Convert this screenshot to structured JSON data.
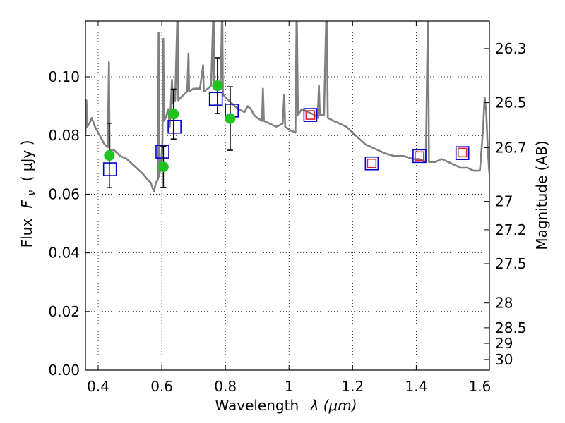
{
  "chart_data": {
    "type": "scatter",
    "xlabel_text": "Wavelength",
    "xlabel_math": "λ (μm)",
    "ylabel_text": "Flux",
    "ylabel_math": "F",
    "ylabel_sub": "ν",
    "ylabel_unit": "( μJy )",
    "y2label": "Magnitude (AB)",
    "xlim": [
      0.36,
      1.63
    ],
    "ylim": [
      0.0,
      0.119
    ],
    "xticks": [
      0.4,
      0.6,
      0.8,
      1.0,
      1.2,
      1.4,
      1.6
    ],
    "xtick_labels": [
      "0.4",
      "0.6",
      "0.8",
      "1",
      "1.2",
      "1.4",
      "1.6"
    ],
    "yticks": [
      0.0,
      0.02,
      0.04,
      0.06,
      0.08,
      0.1
    ],
    "ytick_labels": [
      "0.00",
      "0.02",
      "0.04",
      "0.06",
      "0.08",
      "0.10"
    ],
    "mag_ticks": [
      26.3,
      26.5,
      26.7,
      27,
      27.2,
      27.5,
      28,
      28.5,
      29,
      30
    ],
    "mag_tick_labels": [
      "26.3",
      "26.5",
      "26.7",
      "27",
      "27.2",
      "27.5",
      "28",
      "28.5",
      "29",
      "30"
    ],
    "grid": true,
    "colors": {
      "template": "#808080",
      "observed": "#1fc41f",
      "model_box": "#0000cc",
      "ir_box": "#e0202a",
      "errorbar": "#000000"
    },
    "template_spectrum": [
      [
        0.36,
        0.08
      ],
      [
        0.363,
        0.092
      ],
      [
        0.366,
        0.083
      ],
      [
        0.372,
        0.084
      ],
      [
        0.38,
        0.086
      ],
      [
        0.39,
        0.083
      ],
      [
        0.4,
        0.081
      ],
      [
        0.41,
        0.079
      ],
      [
        0.42,
        0.077
      ],
      [
        0.43,
        0.076
      ],
      [
        0.434,
        0.105
      ],
      [
        0.436,
        0.075
      ],
      [
        0.45,
        0.075
      ],
      [
        0.47,
        0.073
      ],
      [
        0.49,
        0.072
      ],
      [
        0.5,
        0.071
      ],
      [
        0.52,
        0.069
      ],
      [
        0.54,
        0.067
      ],
      [
        0.555,
        0.065
      ],
      [
        0.565,
        0.064
      ],
      [
        0.575,
        0.061
      ],
      [
        0.582,
        0.064
      ],
      [
        0.588,
        0.065
      ],
      [
        0.59,
        0.115
      ],
      [
        0.592,
        0.066
      ],
      [
        0.598,
        0.071
      ],
      [
        0.602,
        0.078
      ],
      [
        0.605,
        0.113
      ],
      [
        0.607,
        0.085
      ],
      [
        0.612,
        0.086
      ],
      [
        0.62,
        0.089
      ],
      [
        0.625,
        0.083
      ],
      [
        0.632,
        0.099
      ],
      [
        0.635,
        0.091
      ],
      [
        0.642,
        0.092
      ],
      [
        0.65,
        0.125
      ],
      [
        0.652,
        0.092
      ],
      [
        0.66,
        0.093
      ],
      [
        0.67,
        0.094
      ],
      [
        0.68,
        0.095
      ],
      [
        0.684,
        0.108
      ],
      [
        0.686,
        0.095
      ],
      [
        0.7,
        0.096
      ],
      [
        0.72,
        0.096
      ],
      [
        0.73,
        0.104
      ],
      [
        0.732,
        0.095
      ],
      [
        0.745,
        0.096
      ],
      [
        0.755,
        0.097
      ],
      [
        0.763,
        0.125
      ],
      [
        0.765,
        0.097
      ],
      [
        0.775,
        0.098
      ],
      [
        0.785,
        0.097
      ],
      [
        0.79,
        0.125
      ],
      [
        0.792,
        0.094
      ],
      [
        0.8,
        0.093
      ],
      [
        0.81,
        0.092
      ],
      [
        0.82,
        0.091
      ],
      [
        0.84,
        0.089
      ],
      [
        0.86,
        0.088
      ],
      [
        0.87,
        0.09
      ],
      [
        0.88,
        0.089
      ],
      [
        0.89,
        0.087
      ],
      [
        0.9,
        0.086
      ],
      [
        0.915,
        0.085
      ],
      [
        0.918,
        0.096
      ],
      [
        0.921,
        0.085
      ],
      [
        0.94,
        0.084
      ],
      [
        0.96,
        0.083
      ],
      [
        0.98,
        0.084
      ],
      [
        0.985,
        0.094
      ],
      [
        0.988,
        0.083
      ],
      [
        1.0,
        0.082
      ],
      [
        1.02,
        0.081
      ],
      [
        1.024,
        0.125
      ],
      [
        1.028,
        0.087
      ],
      [
        1.04,
        0.089
      ],
      [
        1.06,
        0.088
      ],
      [
        1.08,
        0.087
      ],
      [
        1.09,
        0.086
      ],
      [
        1.094,
        0.097
      ],
      [
        1.097,
        0.087
      ],
      [
        1.11,
        0.087
      ],
      [
        1.118,
        0.125
      ],
      [
        1.122,
        0.086
      ],
      [
        1.14,
        0.085
      ],
      [
        1.16,
        0.084
      ],
      [
        1.18,
        0.083
      ],
      [
        1.2,
        0.081
      ],
      [
        1.22,
        0.079
      ],
      [
        1.24,
        0.077
      ],
      [
        1.26,
        0.076
      ],
      [
        1.28,
        0.075
      ],
      [
        1.3,
        0.074
      ],
      [
        1.33,
        0.073
      ],
      [
        1.36,
        0.073
      ],
      [
        1.39,
        0.072
      ],
      [
        1.41,
        0.072
      ],
      [
        1.43,
        0.071
      ],
      [
        1.437,
        0.125
      ],
      [
        1.44,
        0.071
      ],
      [
        1.46,
        0.071
      ],
      [
        1.48,
        0.072
      ],
      [
        1.5,
        0.071
      ],
      [
        1.52,
        0.07
      ],
      [
        1.54,
        0.069
      ],
      [
        1.56,
        0.069
      ],
      [
        1.58,
        0.068
      ],
      [
        1.6,
        0.068
      ],
      [
        1.61,
        0.082
      ],
      [
        1.615,
        0.093
      ],
      [
        1.62,
        0.088
      ],
      [
        1.625,
        0.075
      ],
      [
        1.63,
        0.067
      ]
    ],
    "model_photometry": [
      [
        0.437,
        0.0685
      ],
      [
        0.602,
        0.0745
      ],
      [
        0.64,
        0.083
      ],
      [
        0.77,
        0.0925
      ],
      [
        0.82,
        0.0885
      ],
      [
        1.067,
        0.087
      ],
      [
        1.26,
        0.0705
      ],
      [
        1.41,
        0.073
      ],
      [
        1.545,
        0.074
      ]
    ],
    "ir_photometry": [
      [
        1.067,
        0.087
      ],
      [
        1.26,
        0.0705
      ],
      [
        1.41,
        0.073
      ],
      [
        1.545,
        0.0742
      ]
    ],
    "observed_photometry": [
      {
        "x": 0.435,
        "y": 0.0732,
        "err": 0.011
      },
      {
        "x": 0.605,
        "y": 0.0693,
        "err": 0.007
      },
      {
        "x": 0.637,
        "y": 0.0873,
        "err": 0.0085
      },
      {
        "x": 0.775,
        "y": 0.097,
        "err": 0.0095
      },
      {
        "x": 0.815,
        "y": 0.0858,
        "err": 0.0108
      }
    ]
  }
}
